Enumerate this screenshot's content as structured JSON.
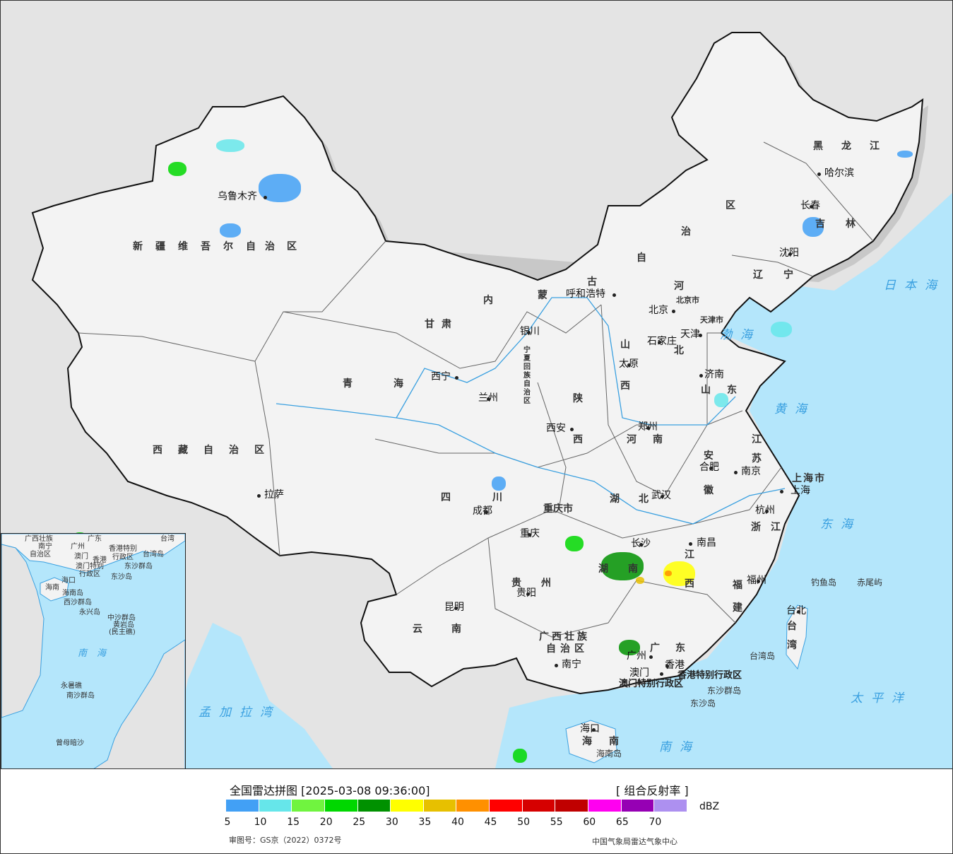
{
  "colors": {
    "sea": "#b4e6fb",
    "land_china": "#f3f3f3",
    "land_other": "#e4e4e4",
    "river": "#3aa0e0",
    "border": "#111111",
    "label_sea": "#3aa0e0"
  },
  "map": {
    "cities": [
      "乌鲁木齐",
      "拉萨",
      "西宁",
      "兰州",
      "银川",
      "呼和浩特",
      "北京",
      "天津",
      "石家庄",
      "太原",
      "济南",
      "郑州",
      "西安",
      "成都",
      "重庆",
      "武汉",
      "长沙",
      "南昌",
      "合肥",
      "南京",
      "上海",
      "杭州",
      "福州",
      "台北",
      "贵阳",
      "昆明",
      "南宁",
      "广州",
      "香港",
      "澳门",
      "海口",
      "哈尔滨",
      "长春",
      "沈阳"
    ],
    "provinces": [
      "新疆维吾尔自治区",
      "西藏自治区",
      "青海",
      "甘肃",
      "内蒙古自治区",
      "黑龙江",
      "吉林",
      "辽宁",
      "河北",
      "山西",
      "山东",
      "陕西",
      "河南",
      "江苏",
      "安徽",
      "湖北",
      "湖南",
      "江西",
      "浙江",
      "福建",
      "四川",
      "重庆市",
      "贵州",
      "云南",
      "广西壮族",
      "自治区",
      "广东",
      "海南",
      "台湾",
      "宁夏回族自治区",
      "北京市",
      "天津市",
      "上海市"
    ],
    "sars": [
      "香港特别行政区",
      "澳门特别行政区"
    ],
    "seas": [
      "渤海",
      "黄海",
      "东海",
      "南海",
      "太平洋",
      "日本海",
      "孟加拉湾"
    ],
    "islands": [
      "钓鱼岛",
      "赤尾屿",
      "台湾岛",
      "东沙群岛",
      "东沙岛",
      "海南岛"
    ]
  },
  "inset": {
    "labels": [
      "广西壮族",
      "自治区",
      "南宁",
      "广州",
      "广东",
      "澳门",
      "香港",
      "香港特别",
      "行政区",
      "澳门特别",
      "行政区",
      "台湾",
      "台湾岛",
      "东沙群岛",
      "东沙岛",
      "海口",
      "海南",
      "海南岛",
      "西沙群岛",
      "永兴岛",
      "中沙群岛",
      "黄岩岛",
      "(民主礁)",
      "南海",
      "永暑礁",
      "南沙群岛",
      "曾母暗沙"
    ]
  },
  "legend": {
    "title": "全国雷达拼图 [2025-03-08 09:36:00]",
    "product": "[ 组合反射率 ]",
    "unit": "dBZ",
    "colors": [
      "#42a0f5",
      "#66e6ea",
      "#70f43f",
      "#00d700",
      "#009100",
      "#ffff00",
      "#e7c000",
      "#ff9000",
      "#ff0000",
      "#d60000",
      "#c00000",
      "#ff00f0",
      "#9600b4",
      "#ad90f0"
    ],
    "ticks": [
      "5",
      "10",
      "15",
      "20",
      "25",
      "30",
      "35",
      "40",
      "45",
      "50",
      "55",
      "60",
      "65",
      "70"
    ],
    "approval": "审图号：GS京（2022）0372号",
    "credit": "中国气象局雷达气象中心"
  }
}
